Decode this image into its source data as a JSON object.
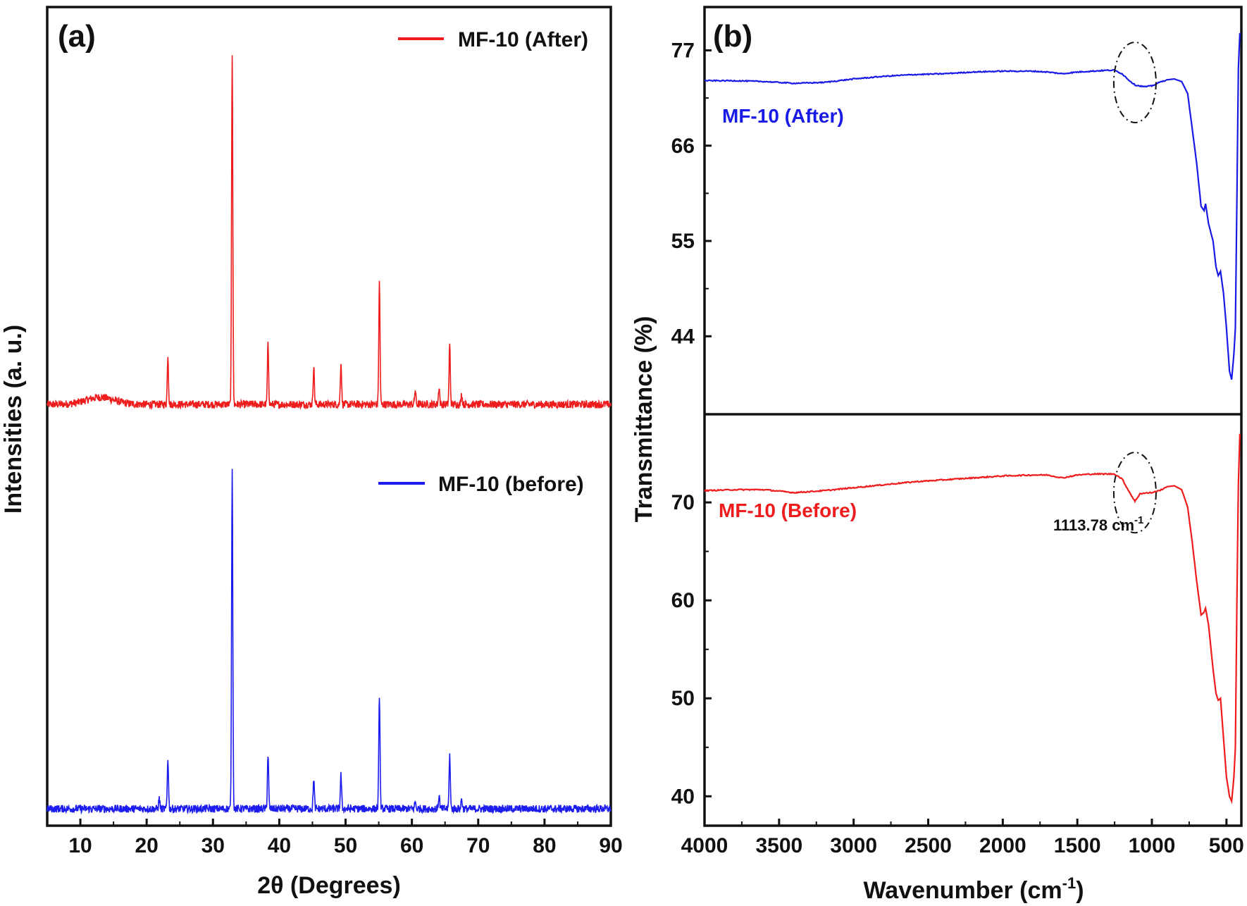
{
  "chart_data": [
    {
      "id": "a",
      "type": "line",
      "panel_label": "(a)",
      "title": "",
      "xlabel_html": "2θ (Degrees)",
      "ylabel": "Intensities (a. u.)",
      "xlim": [
        5,
        90
      ],
      "xticks": [
        10,
        20,
        30,
        40,
        50,
        60,
        70,
        80,
        90
      ],
      "yticks": [],
      "grid": false,
      "legend": "top-right",
      "series": [
        {
          "name": "MF-10 (After)",
          "color": "#ee1c1c",
          "offset": 1.15,
          "amplitude": 1.0,
          "baseline_hump": {
            "center": 13,
            "width": 3,
            "height": 0.02
          },
          "peaks": [
            {
              "x": 23.2,
              "h": 0.14
            },
            {
              "x": 32.9,
              "h": 1.0
            },
            {
              "x": 38.3,
              "h": 0.17
            },
            {
              "x": 45.2,
              "h": 0.11
            },
            {
              "x": 49.3,
              "h": 0.12
            },
            {
              "x": 55.1,
              "h": 0.35
            },
            {
              "x": 60.5,
              "h": 0.04
            },
            {
              "x": 64.1,
              "h": 0.05
            },
            {
              "x": 65.7,
              "h": 0.17
            },
            {
              "x": 67.5,
              "h": 0.03
            }
          ]
        },
        {
          "name": "MF-10 (before)",
          "color": "#1c1cee",
          "offset": 0.0,
          "amplitude": 0.96,
          "baseline_hump": {
            "center": 13,
            "width": 3,
            "height": 0.0
          },
          "peaks": [
            {
              "x": 21.9,
              "h": 0.03
            },
            {
              "x": 23.2,
              "h": 0.15
            },
            {
              "x": 32.9,
              "h": 1.0
            },
            {
              "x": 38.3,
              "h": 0.16
            },
            {
              "x": 45.2,
              "h": 0.09
            },
            {
              "x": 49.3,
              "h": 0.1
            },
            {
              "x": 55.1,
              "h": 0.34
            },
            {
              "x": 60.5,
              "h": 0.02
            },
            {
              "x": 64.1,
              "h": 0.04
            },
            {
              "x": 65.7,
              "h": 0.16
            },
            {
              "x": 67.5,
              "h": 0.03
            }
          ]
        }
      ]
    },
    {
      "id": "b",
      "type": "line",
      "panel_label": "(b)",
      "title": "",
      "xlabel": "Wavenumber (cm",
      "xlabel_sup": "-1",
      "xlabel_end": ")",
      "ylabel": "Transmittance (%)",
      "xlim": [
        4000,
        400
      ],
      "xticks": [
        4000,
        3500,
        3000,
        2500,
        2000,
        1500,
        1000,
        500
      ],
      "grid": false,
      "subplots": [
        {
          "name": "MF-10 (After)",
          "color": "#1a1ae6",
          "ylim": [
            35,
            82
          ],
          "yticks": [
            44,
            55,
            66,
            77
          ],
          "label_position": "upper-left",
          "points": [
            [
              4000,
              73.5
            ],
            [
              3800,
              73.5
            ],
            [
              3600,
              73.4
            ],
            [
              3400,
              73.2
            ],
            [
              3200,
              73.3
            ],
            [
              3000,
              73.7
            ],
            [
              2800,
              74.0
            ],
            [
              2600,
              74.2
            ],
            [
              2400,
              74.3
            ],
            [
              2200,
              74.5
            ],
            [
              2000,
              74.6
            ],
            [
              1800,
              74.6
            ],
            [
              1700,
              74.5
            ],
            [
              1600,
              74.3
            ],
            [
              1500,
              74.5
            ],
            [
              1400,
              74.6
            ],
            [
              1300,
              74.7
            ],
            [
              1250,
              74.7
            ],
            [
              1200,
              74.3
            ],
            [
              1150,
              73.5
            ],
            [
              1113,
              73.0
            ],
            [
              1050,
              72.8
            ],
            [
              1000,
              72.9
            ],
            [
              950,
              73.3
            ],
            [
              900,
              73.6
            ],
            [
              850,
              73.7
            ],
            [
              800,
              73.4
            ],
            [
              760,
              72.0
            ],
            [
              730,
              68.0
            ],
            [
              700,
              64.0
            ],
            [
              670,
              59.0
            ],
            [
              650,
              58.5
            ],
            [
              640,
              59.3
            ],
            [
              620,
              57.0
            ],
            [
              590,
              55.0
            ],
            [
              570,
              52.0
            ],
            [
              555,
              51.0
            ],
            [
              540,
              51.5
            ],
            [
              520,
              49.0
            ],
            [
              500,
              45.0
            ],
            [
              480,
              40.0
            ],
            [
              465,
              39.0
            ],
            [
              450,
              42.0
            ],
            [
              440,
              45.0
            ],
            [
              430,
              60.0
            ],
            [
              420,
              75.0
            ],
            [
              410,
              79.0
            ]
          ]
        },
        {
          "name": "MF-10 (Before)",
          "color": "#ee1c1c",
          "ylim": [
            37,
            79
          ],
          "yticks": [
            40,
            50,
            60,
            70
          ],
          "label_position": "middle-left",
          "points": [
            [
              4000,
              71.2
            ],
            [
              3800,
              71.3
            ],
            [
              3600,
              71.3
            ],
            [
              3400,
              71.0
            ],
            [
              3200,
              71.2
            ],
            [
              3000,
              71.5
            ],
            [
              2800,
              71.8
            ],
            [
              2600,
              72.1
            ],
            [
              2400,
              72.3
            ],
            [
              2200,
              72.5
            ],
            [
              2000,
              72.7
            ],
            [
              1800,
              72.8
            ],
            [
              1700,
              72.8
            ],
            [
              1600,
              72.5
            ],
            [
              1500,
              72.8
            ],
            [
              1400,
              72.9
            ],
            [
              1300,
              72.9
            ],
            [
              1250,
              72.9
            ],
            [
              1200,
              72.4
            ],
            [
              1160,
              71.3
            ],
            [
              1113.78,
              70.1
            ],
            [
              1080,
              70.9
            ],
            [
              1000,
              71.0
            ],
            [
              950,
              71.2
            ],
            [
              900,
              71.6
            ],
            [
              850,
              71.7
            ],
            [
              800,
              71.3
            ],
            [
              760,
              69.5
            ],
            [
              730,
              66.0
            ],
            [
              700,
              62.0
            ],
            [
              670,
              58.5
            ],
            [
              650,
              58.8
            ],
            [
              640,
              59.2
            ],
            [
              620,
              57.5
            ],
            [
              590,
              53.0
            ],
            [
              570,
              50.5
            ],
            [
              555,
              49.8
            ],
            [
              540,
              50.0
            ],
            [
              520,
              46.0
            ],
            [
              500,
              42.0
            ],
            [
              480,
              40.0
            ],
            [
              465,
              39.5
            ],
            [
              450,
              42.0
            ],
            [
              440,
              45.0
            ],
            [
              430,
              60.0
            ],
            [
              420,
              72.0
            ],
            [
              410,
              77.0
            ]
          ]
        }
      ],
      "annotations": [
        {
          "text": "1113.78 cm",
          "sup": "-1",
          "target_x": 1113.78
        }
      ]
    }
  ]
}
